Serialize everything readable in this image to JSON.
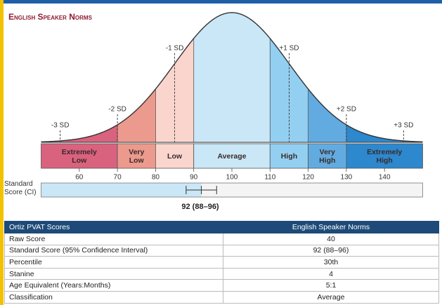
{
  "header": {
    "title": "English Speaker Norms"
  },
  "curve": {
    "xlim": [
      50,
      150
    ],
    "xticks": [
      60,
      70,
      80,
      90,
      100,
      110,
      120,
      130,
      140
    ],
    "mean": 100,
    "sd": 15,
    "sd_markers": [
      {
        "label": "-3 SD",
        "value": 55
      },
      {
        "label": "-2 SD",
        "value": 70
      },
      {
        "label": "-1 SD",
        "value": 85
      },
      {
        "label": "+1 SD",
        "value": 115
      },
      {
        "label": "+2 SD",
        "value": 130
      },
      {
        "label": "+3 SD",
        "value": 145
      }
    ],
    "bands": [
      {
        "label": "Extremely Low",
        "from": 50,
        "to": 70,
        "color": "#d9627f"
      },
      {
        "label": "Very Low",
        "from": 70,
        "to": 80,
        "color": "#ec9a8d"
      },
      {
        "label": "Low",
        "from": 80,
        "to": 90,
        "color": "#fad5cd"
      },
      {
        "label": "Average",
        "from": 90,
        "to": 110,
        "color": "#c9e7f7"
      },
      {
        "label": "High",
        "from": 110,
        "to": 120,
        "color": "#93cff1"
      },
      {
        "label": "Very High",
        "from": 120,
        "to": 130,
        "color": "#62abe0"
      },
      {
        "label": "Extremely High",
        "from": 130,
        "to": 150,
        "color": "#2d88cd"
      }
    ]
  },
  "score": {
    "label": "Standard Score (CI)",
    "value": 92,
    "ci": [
      88,
      96
    ],
    "value_label": "92 (88–96)",
    "color": "#c9e7f7"
  },
  "table": {
    "header": [
      "Ortiz PVAT Scores",
      "English Speaker Norms"
    ],
    "rows": [
      [
        "Raw Score",
        "40"
      ],
      [
        "Standard Score (95% Confidence Interval)",
        "92 (88–96)"
      ],
      [
        "Percentile",
        "30th"
      ],
      [
        "Stanine",
        "4"
      ],
      [
        "Age Equivalent (Years:Months)",
        "5:1"
      ],
      [
        "Classification",
        "Average"
      ]
    ]
  }
}
